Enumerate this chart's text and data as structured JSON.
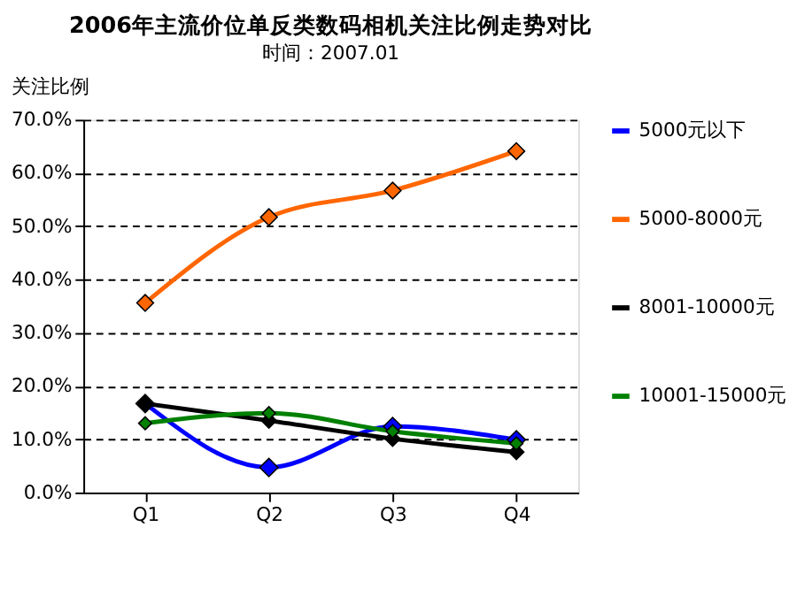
{
  "chart_data": {
    "type": "line",
    "title": "2006年主流价位单反类数码相机关注比例走势对比",
    "ylabel": "关注比例",
    "categories": [
      "Q1",
      "Q2",
      "Q3",
      "Q4"
    ],
    "series": [
      {
        "name": "5000元以下",
        "color": "#0000ff",
        "values": [
          16.7,
          4.7,
          12.4,
          9.9
        ]
      },
      {
        "name": "5000-8000元",
        "color": "#ff6600",
        "values": [
          35.6,
          51.7,
          56.7,
          64.1
        ]
      },
      {
        "name": "8001-10000元",
        "color": "#000000",
        "values": [
          16.7,
          13.5,
          10.1,
          7.6
        ]
      },
      {
        "name": "10001-15000元",
        "color": "#008000",
        "values": [
          13.0,
          14.9,
          11.5,
          9.2
        ]
      }
    ],
    "ylim": [
      0,
      70
    ],
    "yticks": [
      {
        "value": 0,
        "label": "0.0%"
      },
      {
        "value": 10,
        "label": "10.0%"
      },
      {
        "value": 20,
        "label": "20.0%"
      },
      {
        "value": 30,
        "label": "30.0%"
      },
      {
        "value": 40,
        "label": "40.0%"
      },
      {
        "value": 50,
        "label": "50.0%"
      },
      {
        "value": 60,
        "label": "60.0%"
      },
      {
        "value": 70,
        "label": "70.0%"
      }
    ],
    "grid": "y",
    "legend": "right",
    "marker": "diamond",
    "line_style": "solid",
    "annotations": [
      "时间：2007.01"
    ]
  }
}
